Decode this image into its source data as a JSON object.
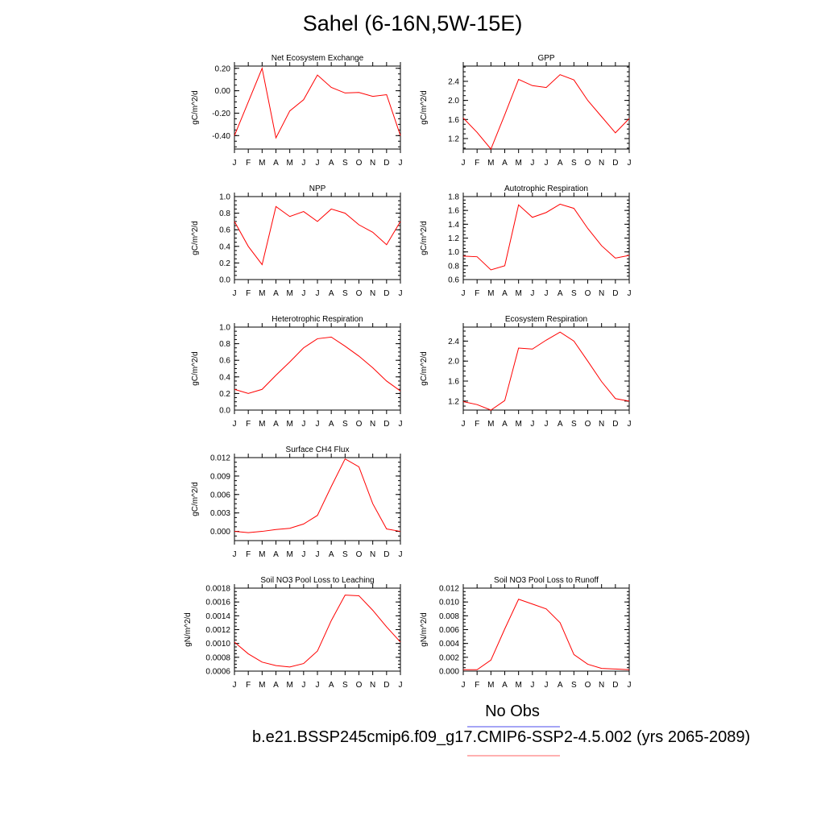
{
  "title": "Sahel (6-16N,5W-15E)",
  "months": [
    "J",
    "F",
    "M",
    "A",
    "M",
    "J",
    "J",
    "A",
    "S",
    "O",
    "N",
    "D",
    "J"
  ],
  "legend": {
    "no_obs": "No Obs",
    "run": "b.e21.BSSP245cmip6.f09_g17.CMIP6-SSP2-4.5.002 (yrs 2065-2089)",
    "obs_color": "#6f6ff0",
    "run_color": "#ff8080"
  },
  "line_color": "#ff0000",
  "chart_data": [
    {
      "type": "line",
      "title": "Net Ecosystem Exchange",
      "ylabel": "gC/m^2/d",
      "ylim": [
        -0.52,
        0.22
      ],
      "yticks": [
        -0.4,
        -0.2,
        0.0,
        0.2
      ],
      "yticklabels": [
        "-0.40",
        "-0.20",
        "0.00",
        "0.20"
      ],
      "values": [
        -0.4,
        -0.1,
        0.2,
        -0.42,
        -0.18,
        -0.08,
        0.14,
        0.03,
        -0.02,
        -0.015,
        -0.05,
        -0.035,
        -0.4
      ]
    },
    {
      "type": "line",
      "title": "GPP",
      "ylabel": "gC/m^2/d",
      "ylim": [
        0.98,
        2.72
      ],
      "yticks": [
        1.2,
        1.6,
        2.0,
        2.4
      ],
      "yticklabels": [
        "1.2",
        "1.6",
        "2.0",
        "2.4"
      ],
      "values": [
        1.63,
        1.33,
        0.98,
        1.7,
        2.44,
        2.31,
        2.27,
        2.54,
        2.43,
        2.0,
        1.66,
        1.32,
        1.62
      ]
    },
    {
      "type": "line",
      "title": "NPP",
      "ylabel": "gC/m^2/d",
      "ylim": [
        0.0,
        1.0
      ],
      "yticks": [
        0.0,
        0.2,
        0.4,
        0.6,
        0.8,
        1.0
      ],
      "yticklabels": [
        "0.0",
        "0.2",
        "0.4",
        "0.6",
        "0.8",
        "1.0"
      ],
      "values": [
        0.7,
        0.4,
        0.18,
        0.88,
        0.76,
        0.82,
        0.7,
        0.85,
        0.8,
        0.66,
        0.57,
        0.42,
        0.7
      ]
    },
    {
      "type": "line",
      "title": "Autotrophic Respiration",
      "ylabel": "gC/m^2/d",
      "ylim": [
        0.6,
        1.8
      ],
      "yticks": [
        0.6,
        0.8,
        1.0,
        1.2,
        1.4,
        1.6,
        1.8
      ],
      "yticklabels": [
        "0.6",
        "0.8",
        "1.0",
        "1.2",
        "1.4",
        "1.6",
        "1.8"
      ],
      "values": [
        0.94,
        0.93,
        0.74,
        0.8,
        1.68,
        1.5,
        1.57,
        1.69,
        1.63,
        1.34,
        1.09,
        0.91,
        0.95
      ]
    },
    {
      "type": "line",
      "title": "Heterotrophic Respiration",
      "ylabel": "gC/m^2/d",
      "ylim": [
        0.0,
        1.0
      ],
      "yticks": [
        0.0,
        0.2,
        0.4,
        0.6,
        0.8,
        1.0
      ],
      "yticklabels": [
        "0.0",
        "0.2",
        "0.4",
        "0.6",
        "0.8",
        "1.0"
      ],
      "values": [
        0.25,
        0.2,
        0.25,
        0.42,
        0.58,
        0.75,
        0.86,
        0.88,
        0.77,
        0.65,
        0.51,
        0.35,
        0.23
      ]
    },
    {
      "type": "line",
      "title": "Ecosystem Respiration",
      "ylabel": "gC/m^2/d",
      "ylim": [
        1.02,
        2.68
      ],
      "yticks": [
        1.2,
        1.6,
        2.0,
        2.4
      ],
      "yticklabels": [
        "1.2",
        "1.6",
        "2.0",
        "2.4"
      ],
      "values": [
        1.19,
        1.13,
        1.02,
        1.21,
        2.26,
        2.24,
        2.42,
        2.58,
        2.4,
        2.0,
        1.59,
        1.25,
        1.2
      ]
    },
    {
      "type": "line",
      "title": "Surface CH4 Flux",
      "ylabel": "gC/m^2/d",
      "ylim": [
        -0.0015,
        0.012
      ],
      "yticks": [
        0.0,
        0.003,
        0.006,
        0.009,
        0.012
      ],
      "yticklabels": [
        "0.000",
        "0.003",
        "0.006",
        "0.009",
        "0.012"
      ],
      "values": [
        0.0,
        -0.0002,
        0.0,
        0.0003,
        0.0005,
        0.0012,
        0.0026,
        0.0073,
        0.0118,
        0.0105,
        0.0045,
        0.0004,
        0.0
      ]
    },
    null,
    {
      "type": "line",
      "title": "Soil NO3 Pool Loss to Leaching",
      "ylabel": "gN/m^2/d",
      "ylim": [
        0.0006,
        0.0018
      ],
      "yticks": [
        0.0006,
        0.0008,
        0.001,
        0.0012,
        0.0014,
        0.0016,
        0.0018
      ],
      "yticklabels": [
        "0.0006",
        "0.0008",
        "0.0010",
        "0.0012",
        "0.0014",
        "0.0016",
        "0.0018"
      ],
      "values": [
        0.00102,
        0.00085,
        0.00073,
        0.00068,
        0.00066,
        0.00071,
        0.00089,
        0.00133,
        0.0017,
        0.00169,
        0.00148,
        0.00124,
        0.00102
      ]
    },
    {
      "type": "line",
      "title": "Soil NO3 Pool Loss to Runoff",
      "ylabel": "gN/m^2/d",
      "ylim": [
        0.0,
        0.012
      ],
      "yticks": [
        0.0,
        0.002,
        0.004,
        0.006,
        0.008,
        0.01,
        0.012
      ],
      "yticklabels": [
        "0.000",
        "0.002",
        "0.004",
        "0.006",
        "0.008",
        "0.010",
        "0.012"
      ],
      "values": [
        0.0002,
        0.0002,
        0.0016,
        0.0061,
        0.0104,
        0.0097,
        0.009,
        0.007,
        0.0024,
        0.001,
        0.0004,
        0.0003,
        0.0002
      ]
    }
  ]
}
